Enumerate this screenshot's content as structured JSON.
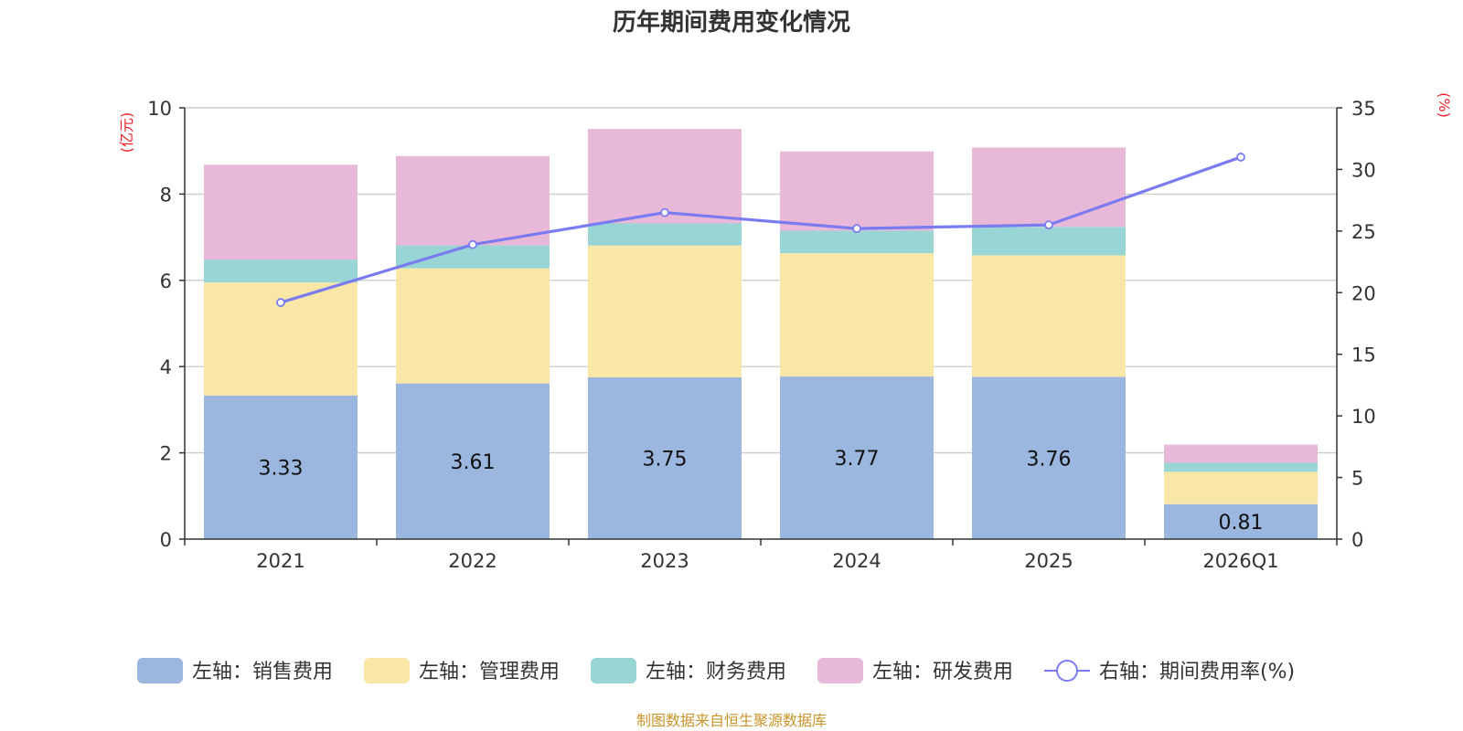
{
  "chart_data": {
    "type": "bar",
    "title": "历年期间费用变化情况",
    "categories": [
      "2021",
      "2022",
      "2023",
      "2024",
      "2025",
      "2026Q1"
    ],
    "left_axis": {
      "unit": "(亿元)",
      "ylim": [
        0,
        10
      ],
      "ticks": [
        "0",
        "2",
        "4",
        "6",
        "8",
        "10"
      ]
    },
    "right_axis": {
      "unit": "(%)",
      "ylim": [
        0,
        35
      ],
      "ticks": [
        "0",
        "5",
        "10",
        "15",
        "20",
        "25",
        "30",
        "35"
      ]
    },
    "series": [
      {
        "name": "左轴：销售费用",
        "axis": "left",
        "stacked": true,
        "color": "#9bb7e0",
        "values": [
          3.33,
          3.61,
          3.75,
          3.77,
          3.76,
          0.81
        ],
        "labels": [
          "3.33",
          "3.61",
          "3.75",
          "3.77",
          "3.76",
          "0.81"
        ]
      },
      {
        "name": "左轴：管理费用",
        "axis": "left",
        "stacked": true,
        "color": "#f8e7a7",
        "values": [
          2.62,
          2.67,
          3.06,
          2.86,
          2.82,
          0.75
        ]
      },
      {
        "name": "左轴：财务费用",
        "axis": "left",
        "stacked": true,
        "color": "#98d5d4",
        "values": [
          0.53,
          0.53,
          0.51,
          0.52,
          0.66,
          0.21
        ]
      },
      {
        "name": "左轴：研发费用",
        "axis": "left",
        "stacked": true,
        "color": "#e8b8d8",
        "values": [
          2.2,
          2.07,
          2.19,
          1.84,
          1.84,
          0.42
        ]
      },
      {
        "name": "右轴：期间费用率(%)",
        "axis": "right",
        "type": "line",
        "color": "#7b7bf0",
        "values": [
          19.2,
          23.9,
          26.5,
          25.2,
          25.5,
          31.0
        ]
      }
    ],
    "legend_position": "bottom",
    "grid": true,
    "source": "制图数据来自恒生聚源数据库",
    "colors": {
      "axis_unit": "#e8232a",
      "source": "#c8952a",
      "grid": "#cccccc",
      "axis": "#333333"
    }
  }
}
